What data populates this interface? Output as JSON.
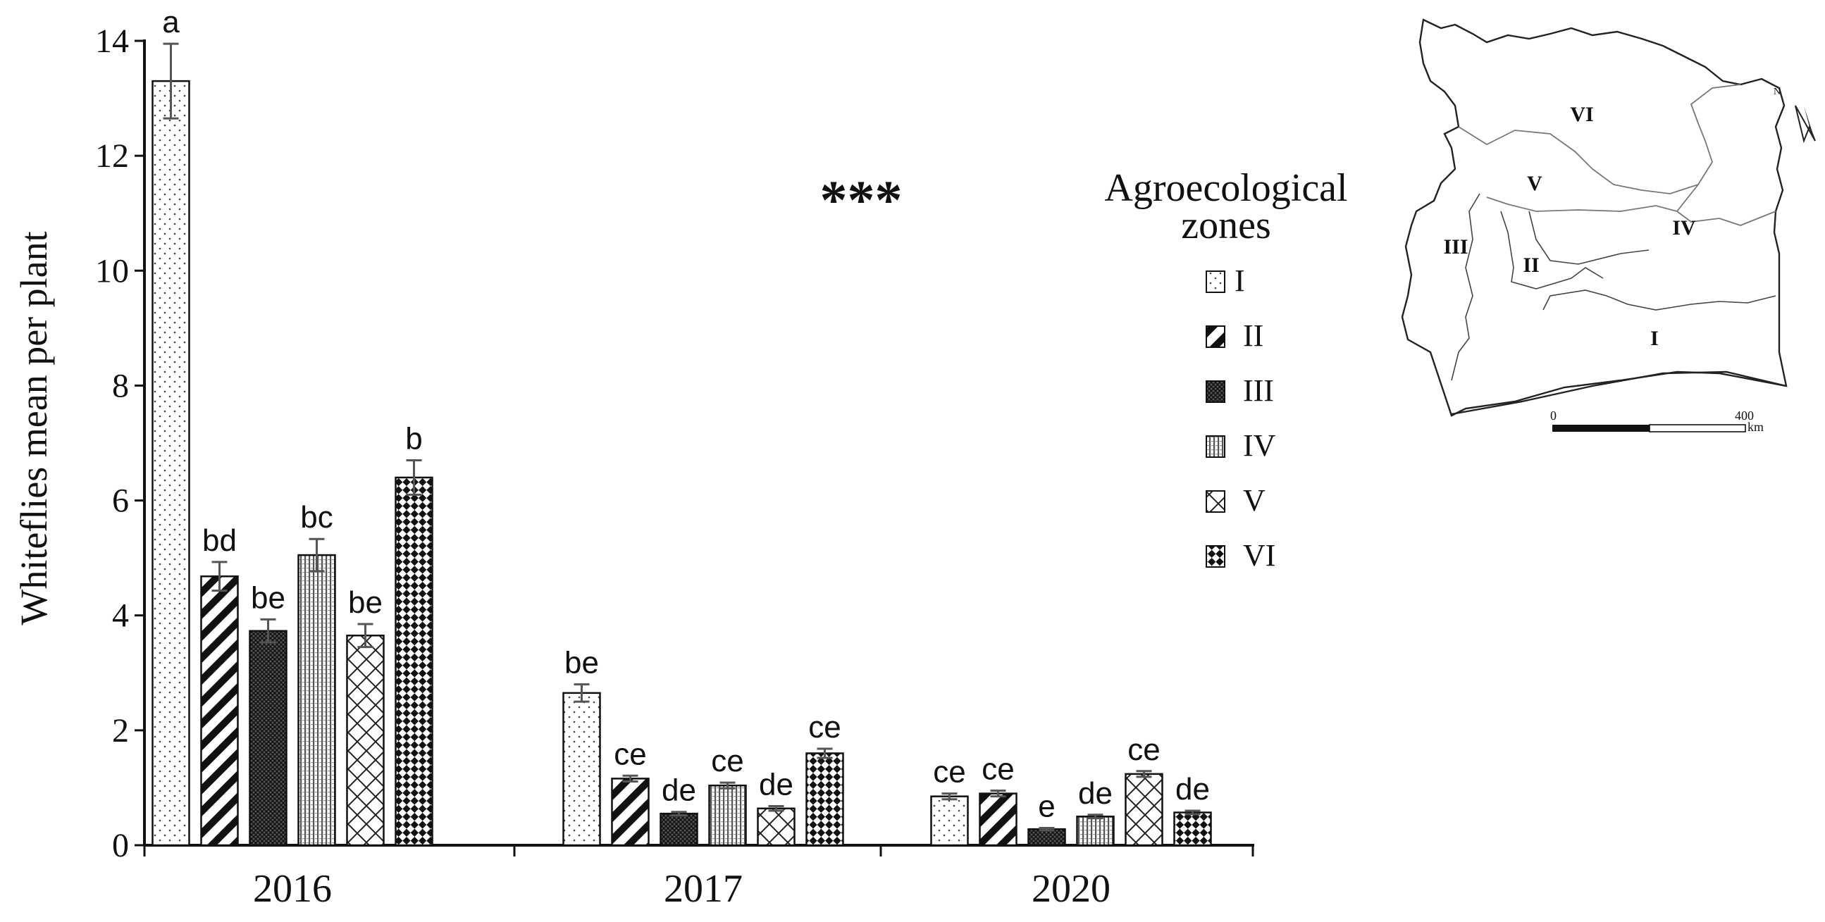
{
  "chart_data": {
    "type": "bar",
    "ylabel": "Whiteflies mean per plant",
    "xlabel": "",
    "ylim": [
      0,
      14
    ],
    "yticks": [
      0,
      2,
      4,
      6,
      8,
      10,
      12,
      14
    ],
    "categories": [
      "2016",
      "2017",
      "2020"
    ],
    "significance": "***",
    "legend_title_line1": "Agroecological",
    "legend_title_line2": "zones",
    "series": [
      {
        "name": "I",
        "pattern": "dots",
        "values": [
          13.3,
          2.65,
          0.85
        ],
        "errors": [
          0.65,
          0.15,
          0.05
        ],
        "letters": [
          "a",
          "be",
          "ce"
        ]
      },
      {
        "name": "II",
        "pattern": "diag-stripes",
        "values": [
          4.68,
          1.16,
          0.9
        ],
        "errors": [
          0.25,
          0.05,
          0.05
        ],
        "letters": [
          "bd",
          "ce",
          "ce"
        ]
      },
      {
        "name": "III",
        "pattern": "dense-grid",
        "values": [
          3.73,
          0.55,
          0.28
        ],
        "errors": [
          0.2,
          0.03,
          0.02
        ],
        "letters": [
          "be",
          "de",
          "e"
        ]
      },
      {
        "name": "IV",
        "pattern": "vertical",
        "values": [
          5.05,
          1.04,
          0.5
        ],
        "errors": [
          0.28,
          0.05,
          0.03
        ],
        "letters": [
          "bc",
          "ce",
          "de"
        ]
      },
      {
        "name": "V",
        "pattern": "crosshatch",
        "values": [
          3.65,
          0.64,
          1.24
        ],
        "errors": [
          0.2,
          0.04,
          0.05
        ],
        "letters": [
          "be",
          "de",
          "ce"
        ]
      },
      {
        "name": "VI",
        "pattern": "checker",
        "values": [
          6.4,
          1.6,
          0.57
        ],
        "errors": [
          0.3,
          0.08,
          0.03
        ],
        "letters": [
          "b",
          "ce",
          "de"
        ]
      }
    ]
  },
  "map": {
    "zone_labels": [
      "VI",
      "V",
      "IV",
      "III",
      "II",
      "I"
    ],
    "north_label": "N",
    "scale_start": "0",
    "scale_end": "400",
    "scale_unit": "km"
  }
}
